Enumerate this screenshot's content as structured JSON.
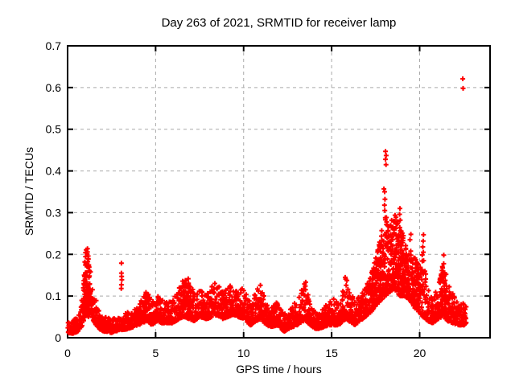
{
  "chart_data": {
    "type": "scatter",
    "title": "Day 263 of 2021, SRMTID for receiver lamp",
    "xlabel": "GPS time / hours",
    "ylabel": "SRMTID / TECUs",
    "series_name": "SRMTID",
    "xlim": [
      0,
      24
    ],
    "ylim": [
      0,
      0.7
    ],
    "x_ticks": [
      {
        "value": 0,
        "label": "0"
      },
      {
        "value": 5,
        "label": "5"
      },
      {
        "value": 10,
        "label": "10"
      },
      {
        "value": 15,
        "label": "15"
      },
      {
        "value": 20,
        "label": "20"
      }
    ],
    "y_ticks": [
      {
        "value": 0.0,
        "label": "0"
      },
      {
        "value": 0.1,
        "label": "0.1"
      },
      {
        "value": 0.2,
        "label": "0.2"
      },
      {
        "value": 0.3,
        "label": "0.3"
      },
      {
        "value": 0.4,
        "label": "0.4"
      },
      {
        "value": 0.5,
        "label": "0.5"
      },
      {
        "value": 0.6,
        "label": "0.6"
      },
      {
        "value": 0.7,
        "label": "0.7"
      }
    ],
    "grid": {
      "show": true,
      "color": "#a9a9a9",
      "dash": [
        4,
        4
      ]
    },
    "frame_color": "#000000",
    "marker": {
      "shape": "plus",
      "color": "#ff0000",
      "size": 7,
      "stroke": 2
    },
    "data_range_hours": [
      0.02,
      22.65
    ],
    "points_per_hour": 120,
    "band_envelope": [
      [
        0.02,
        0.012,
        0.045
      ],
      [
        0.3,
        0.01,
        0.04
      ],
      [
        0.6,
        0.015,
        0.055
      ],
      [
        0.85,
        0.03,
        0.1
      ],
      [
        0.98,
        0.05,
        0.19
      ],
      [
        1.08,
        0.055,
        0.235
      ],
      [
        1.2,
        0.05,
        0.19
      ],
      [
        1.35,
        0.05,
        0.145
      ],
      [
        1.55,
        0.035,
        0.1
      ],
      [
        1.8,
        0.02,
        0.065
      ],
      [
        2.1,
        0.015,
        0.05
      ],
      [
        2.5,
        0.012,
        0.045
      ],
      [
        2.9,
        0.018,
        0.05
      ],
      [
        3.3,
        0.02,
        0.06
      ],
      [
        3.7,
        0.025,
        0.065
      ],
      [
        4.0,
        0.03,
        0.075
      ],
      [
        4.3,
        0.035,
        0.1
      ],
      [
        4.55,
        0.04,
        0.115
      ],
      [
        4.8,
        0.03,
        0.085
      ],
      [
        5.1,
        0.04,
        0.11
      ],
      [
        5.35,
        0.035,
        0.095
      ],
      [
        5.7,
        0.035,
        0.085
      ],
      [
        6.0,
        0.035,
        0.09
      ],
      [
        6.3,
        0.045,
        0.12
      ],
      [
        6.6,
        0.05,
        0.14
      ],
      [
        6.9,
        0.045,
        0.145
      ],
      [
        7.2,
        0.04,
        0.105
      ],
      [
        7.5,
        0.05,
        0.115
      ],
      [
        7.9,
        0.045,
        0.105
      ],
      [
        8.2,
        0.05,
        0.125
      ],
      [
        8.5,
        0.055,
        0.14
      ],
      [
        8.8,
        0.045,
        0.115
      ],
      [
        9.1,
        0.05,
        0.12
      ],
      [
        9.4,
        0.055,
        0.13
      ],
      [
        9.7,
        0.05,
        0.125
      ],
      [
        10.0,
        0.045,
        0.115
      ],
      [
        10.4,
        0.03,
        0.085
      ],
      [
        10.7,
        0.04,
        0.11
      ],
      [
        10.95,
        0.045,
        0.13
      ],
      [
        11.2,
        0.035,
        0.095
      ],
      [
        11.5,
        0.025,
        0.075
      ],
      [
        11.9,
        0.03,
        0.085
      ],
      [
        12.3,
        0.015,
        0.055
      ],
      [
        12.7,
        0.025,
        0.075
      ],
      [
        13.05,
        0.03,
        0.09
      ],
      [
        13.35,
        0.04,
        0.13
      ],
      [
        13.55,
        0.04,
        0.145
      ],
      [
        13.8,
        0.03,
        0.08
      ],
      [
        14.15,
        0.02,
        0.06
      ],
      [
        14.5,
        0.025,
        0.07
      ],
      [
        14.85,
        0.03,
        0.09
      ],
      [
        15.1,
        0.03,
        0.095
      ],
      [
        15.4,
        0.03,
        0.08
      ],
      [
        15.65,
        0.04,
        0.13
      ],
      [
        15.8,
        0.045,
        0.155
      ],
      [
        16.0,
        0.04,
        0.12
      ],
      [
        16.3,
        0.03,
        0.09
      ],
      [
        16.6,
        0.04,
        0.1
      ],
      [
        16.9,
        0.05,
        0.12
      ],
      [
        17.2,
        0.06,
        0.145
      ],
      [
        17.5,
        0.075,
        0.19
      ],
      [
        17.8,
        0.09,
        0.25
      ],
      [
        18.05,
        0.1,
        0.3
      ],
      [
        18.3,
        0.11,
        0.275
      ],
      [
        18.6,
        0.115,
        0.3
      ],
      [
        18.9,
        0.1,
        0.27
      ],
      [
        19.15,
        0.1,
        0.24
      ],
      [
        19.45,
        0.09,
        0.215
      ],
      [
        19.75,
        0.07,
        0.19
      ],
      [
        20.0,
        0.06,
        0.17
      ],
      [
        20.2,
        0.05,
        0.21
      ],
      [
        20.45,
        0.04,
        0.12
      ],
      [
        20.75,
        0.035,
        0.1
      ],
      [
        21.05,
        0.045,
        0.125
      ],
      [
        21.35,
        0.05,
        0.185
      ],
      [
        21.6,
        0.04,
        0.13
      ],
      [
        21.9,
        0.035,
        0.105
      ],
      [
        22.2,
        0.03,
        0.095
      ],
      [
        22.5,
        0.03,
        0.09
      ],
      [
        22.65,
        0.035,
        0.08
      ]
    ],
    "density_boosts": [
      [
        0.9,
        1.3,
        200
      ],
      [
        4.3,
        4.7,
        60
      ],
      [
        6.4,
        7.0,
        60
      ],
      [
        17.2,
        20.0,
        110
      ],
      [
        21.15,
        21.5,
        80
      ]
    ],
    "outliers": [
      [
        3.06,
        0.179
      ],
      [
        3.06,
        0.155
      ],
      [
        3.07,
        0.147
      ],
      [
        3.08,
        0.139
      ],
      [
        3.06,
        0.127
      ],
      [
        3.05,
        0.118
      ],
      [
        18.06,
        0.447
      ],
      [
        18.1,
        0.437
      ],
      [
        18.06,
        0.428
      ],
      [
        18.09,
        0.415
      ],
      [
        17.97,
        0.357
      ],
      [
        18.01,
        0.35
      ],
      [
        18.03,
        0.332
      ],
      [
        18.0,
        0.318
      ],
      [
        18.02,
        0.305
      ],
      [
        18.88,
        0.31
      ],
      [
        18.86,
        0.296
      ],
      [
        18.9,
        0.282
      ],
      [
        19.5,
        0.248
      ],
      [
        19.45,
        0.235
      ],
      [
        20.22,
        0.247
      ],
      [
        20.2,
        0.232
      ],
      [
        20.18,
        0.218
      ],
      [
        21.37,
        0.198
      ],
      [
        22.45,
        0.621
      ],
      [
        22.47,
        0.598
      ]
    ]
  }
}
